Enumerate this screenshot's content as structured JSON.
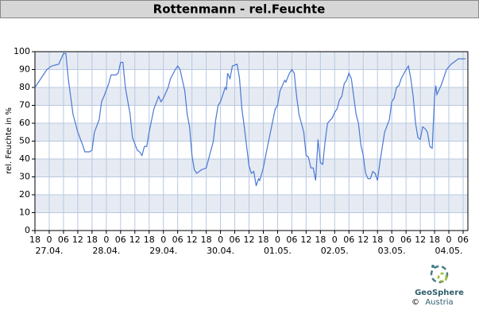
{
  "chart_data": {
    "type": "line",
    "title": "Rottenmann - rel.Feuchte",
    "ylabel": "rel. Feuchte in %",
    "x": [
      0,
      4,
      5,
      7,
      10,
      12,
      13,
      14,
      16,
      18,
      20,
      21,
      23,
      24,
      25,
      27,
      28,
      29,
      31,
      32,
      34,
      35,
      36,
      37,
      38,
      40,
      41,
      43,
      44,
      45,
      46,
      47,
      48,
      50,
      52,
      53,
      54,
      56,
      57,
      59,
      60,
      61,
      63,
      64,
      65,
      66,
      67,
      68,
      70,
      72,
      73,
      75,
      76,
      77,
      78,
      80,
      80.5,
      81,
      82,
      83,
      85,
      86,
      87,
      88,
      90,
      91,
      92,
      93,
      94,
      94.5,
      96,
      97,
      99,
      101,
      102,
      103,
      105,
      105.5,
      107,
      108,
      109,
      110,
      111,
      113,
      114,
      115,
      116,
      117,
      118,
      119,
      120,
      121,
      122,
      123,
      125,
      126,
      127,
      128,
      129,
      130,
      131,
      132,
      133,
      134,
      135,
      136,
      137,
      138,
      139,
      140,
      141,
      142,
      143,
      144,
      145,
      147,
      149,
      150,
      151,
      152,
      153,
      154,
      156,
      157,
      158,
      159,
      160,
      161,
      162,
      163,
      164,
      165,
      166,
      167,
      168,
      168.5,
      169,
      171,
      172,
      173,
      175,
      176,
      178,
      180,
      181
    ],
    "values": [
      80,
      88,
      90,
      92,
      93,
      99,
      99,
      85,
      65,
      55,
      48,
      44,
      44,
      45,
      55,
      62,
      72,
      75,
      82,
      87,
      87,
      88,
      94,
      94,
      80,
      65,
      52,
      45,
      44,
      42,
      47,
      47,
      55,
      68,
      75,
      72,
      74,
      80,
      85,
      90,
      92,
      90,
      78,
      65,
      58,
      42,
      34,
      32,
      34,
      35,
      40,
      50,
      62,
      70,
      72,
      80,
      79,
      88,
      85,
      92,
      93,
      85,
      68,
      58,
      36,
      32,
      33,
      25,
      29,
      28,
      35,
      42,
      55,
      68,
      70,
      78,
      84,
      83,
      88,
      90,
      88,
      75,
      65,
      55,
      42,
      41,
      35,
      35,
      28,
      51,
      38,
      37,
      50,
      60,
      63,
      66,
      68,
      73,
      75,
      82,
      84,
      88,
      85,
      75,
      65,
      60,
      48,
      42,
      32,
      29,
      29,
      33,
      32,
      28,
      38,
      55,
      62,
      72,
      74,
      80,
      81,
      85,
      90,
      92,
      85,
      75,
      60,
      52,
      51,
      58,
      57,
      55,
      47,
      46,
      75,
      81,
      76,
      82,
      86,
      90,
      93,
      94,
      96,
      96,
      96
    ],
    "color": "#4a78d6",
    "xlim": [
      0,
      182
    ],
    "ylim": [
      0,
      100
    ],
    "yticks": [
      0,
      10,
      20,
      30,
      40,
      50,
      60,
      70,
      80,
      90,
      100
    ],
    "xticks": [
      {
        "value": 0,
        "label": "18"
      },
      {
        "value": 6,
        "label": "0"
      },
      {
        "value": 12,
        "label": "06"
      },
      {
        "value": 18,
        "label": "12"
      },
      {
        "value": 24,
        "label": "18"
      },
      {
        "value": 30,
        "label": "0"
      },
      {
        "value": 36,
        "label": "06"
      },
      {
        "value": 42,
        "label": "12"
      },
      {
        "value": 48,
        "label": "18"
      },
      {
        "value": 54,
        "label": "0"
      },
      {
        "value": 60,
        "label": "06"
      },
      {
        "value": 66,
        "label": "12"
      },
      {
        "value": 72,
        "label": "18"
      },
      {
        "value": 78,
        "label": "0"
      },
      {
        "value": 84,
        "label": "06"
      },
      {
        "value": 90,
        "label": "12"
      },
      {
        "value": 96,
        "label": "18"
      },
      {
        "value": 102,
        "label": "0"
      },
      {
        "value": 108,
        "label": "06"
      },
      {
        "value": 114,
        "label": "12"
      },
      {
        "value": 120,
        "label": "18"
      },
      {
        "value": 126,
        "label": "0"
      },
      {
        "value": 132,
        "label": "06"
      },
      {
        "value": 138,
        "label": "12"
      },
      {
        "value": 144,
        "label": "18"
      },
      {
        "value": 150,
        "label": "0"
      },
      {
        "value": 156,
        "label": "06"
      },
      {
        "value": 162,
        "label": "12"
      },
      {
        "value": 168,
        "label": "18"
      },
      {
        "value": 174,
        "label": "0"
      },
      {
        "value": 180,
        "label": "06"
      }
    ],
    "xdates": [
      {
        "value": 6,
        "label": "27.04."
      },
      {
        "value": 30,
        "label": "28.04."
      },
      {
        "value": 54,
        "label": "29.04."
      },
      {
        "value": 78,
        "label": "30.04."
      },
      {
        "value": 102,
        "label": "01.05."
      },
      {
        "value": 126,
        "label": "02.05."
      },
      {
        "value": 150,
        "label": "03.05."
      },
      {
        "value": 174,
        "label": "04.05."
      }
    ],
    "grid": true
  },
  "footer": {
    "copyright": "©",
    "brand": "GeoSphere",
    "sub": "Austria"
  }
}
